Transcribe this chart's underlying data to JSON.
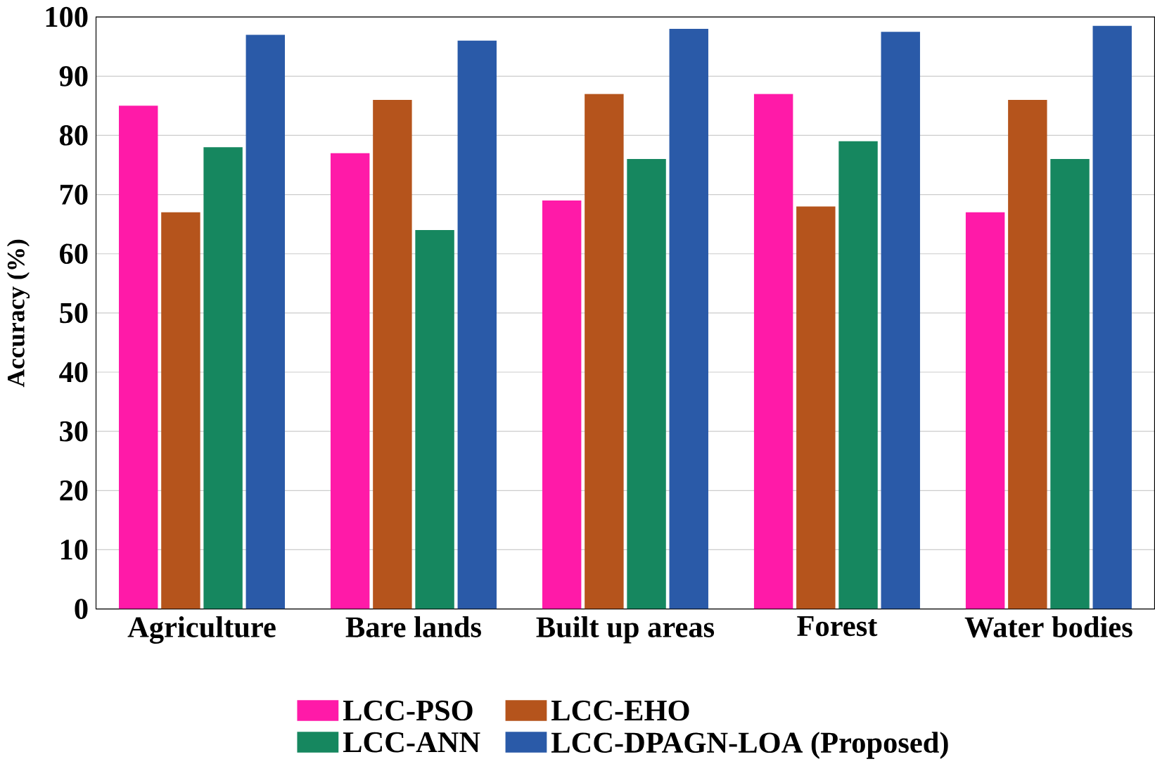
{
  "chart_data": {
    "type": "bar",
    "ylabel": "Accuracy (%)",
    "categories": [
      "Agriculture",
      "Bare lands",
      "Built up areas",
      "Forest",
      "Water bodies"
    ],
    "series": [
      {
        "name": "LCC-PSO",
        "color": "#ff1aa8",
        "values": [
          85,
          77,
          69,
          87,
          67
        ]
      },
      {
        "name": "LCC-EHO",
        "color": "#b5541c",
        "values": [
          67,
          86,
          87,
          68,
          86
        ]
      },
      {
        "name": "LCC-ANN",
        "color": "#16875f",
        "values": [
          78,
          64,
          76,
          79,
          76
        ]
      },
      {
        "name": "LCC-DPAGN-LOA (Proposed)",
        "color": "#2a5aa8",
        "values": [
          97,
          96,
          98,
          97.5,
          98.5
        ]
      }
    ],
    "ylim": [
      0,
      100
    ],
    "yticks": [
      0,
      10,
      20,
      30,
      40,
      50,
      60,
      70,
      80,
      90,
      100
    ],
    "grid": "y",
    "legend": "bottom"
  }
}
